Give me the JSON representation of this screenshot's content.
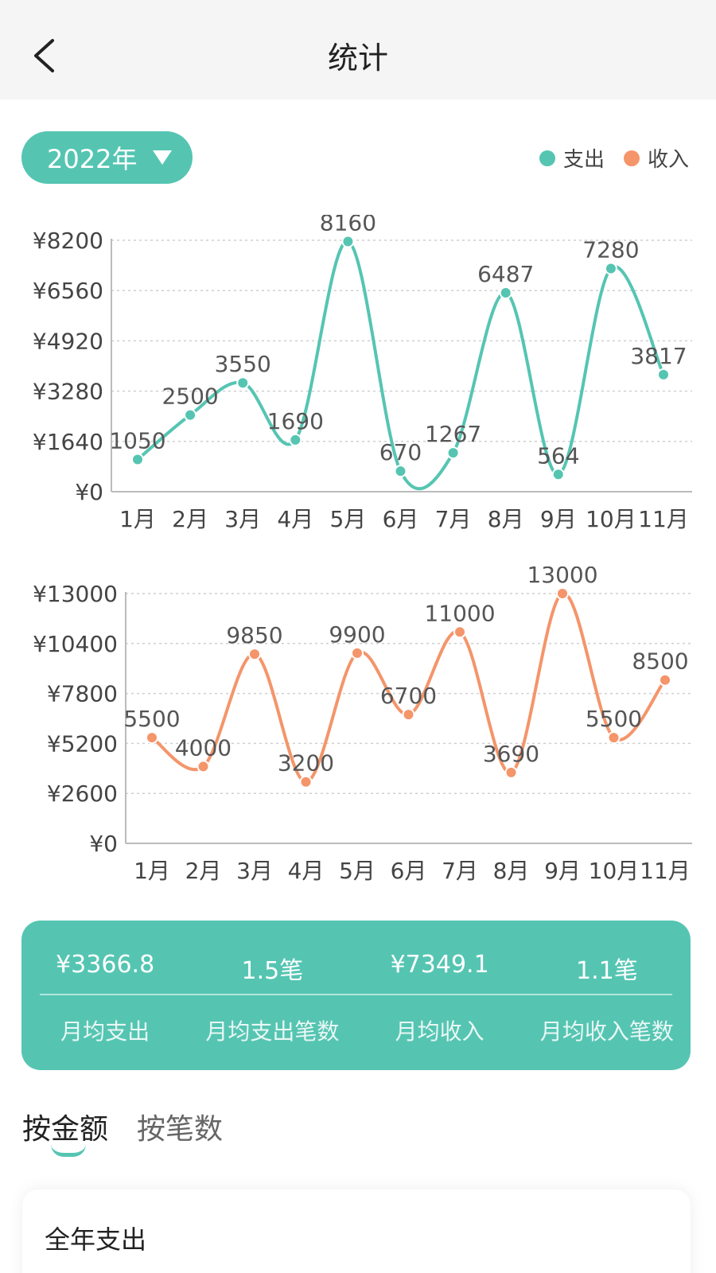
{
  "header": {
    "title": "统计",
    "back_icon": "chevron-left-icon"
  },
  "year_selector": {
    "label": "2022年"
  },
  "legend": [
    {
      "label": "支出",
      "color": "#55c5b2"
    },
    {
      "label": "收入",
      "color": "#f4956a"
    }
  ],
  "chart_data": [
    {
      "type": "line",
      "categories": [
        "1月",
        "2月",
        "3月",
        "4月",
        "5月",
        "6月",
        "7月",
        "8月",
        "9月",
        "10月",
        "11月"
      ],
      "series": [
        {
          "name": "支出",
          "values": [
            1050,
            2500,
            3550,
            1690,
            8160,
            670,
            1267,
            6487,
            564,
            7280,
            3817
          ],
          "color": "#55c5b2"
        }
      ],
      "yticks": [
        "¥0",
        "¥1640",
        "¥3280",
        "¥4920",
        "¥6560",
        "¥8200"
      ],
      "ylim": [
        0,
        8200
      ]
    },
    {
      "type": "line",
      "categories": [
        "1月",
        "2月",
        "3月",
        "4月",
        "5月",
        "6月",
        "7月",
        "8月",
        "9月",
        "10月",
        "11月"
      ],
      "series": [
        {
          "name": "收入",
          "values": [
            5500,
            4000,
            9850,
            3200,
            9900,
            6700,
            11000,
            3690,
            13000,
            5500,
            8500
          ],
          "color": "#f4956a"
        }
      ],
      "yticks": [
        "¥0",
        "¥2600",
        "¥5200",
        "¥7800",
        "¥10400",
        "¥13000"
      ],
      "ylim": [
        0,
        13000
      ]
    }
  ],
  "summary": {
    "values": [
      "¥3366.8",
      "1.5笔",
      "¥7349.1",
      "1.1笔"
    ],
    "labels": [
      "月均支出",
      "月均支出笔数",
      "月均收入",
      "月均收入笔数"
    ]
  },
  "tabs": [
    {
      "label": "按金额"
    },
    {
      "label": "按笔数"
    }
  ],
  "card": {
    "title": "全年支出"
  }
}
